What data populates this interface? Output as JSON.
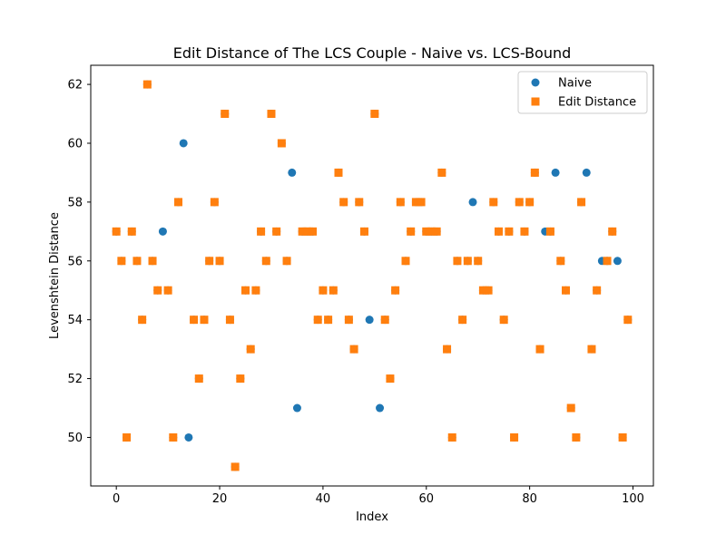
{
  "chart_data": {
    "type": "scatter",
    "title": "Edit Distance of The LCS Couple - Naive vs. LCS-Bound",
    "xlabel": "Index",
    "ylabel": "Levenshtein Distance",
    "xlim": [
      -4.95,
      103.95
    ],
    "ylim": [
      48.35,
      62.65
    ],
    "xticks": [
      0,
      20,
      40,
      60,
      80,
      100
    ],
    "yticks": [
      50,
      52,
      54,
      56,
      58,
      60,
      62
    ],
    "grid": false,
    "legend_position": "top-right",
    "series": [
      {
        "name": "Naive",
        "marker": "circle",
        "color": "#1f77b4",
        "x": [
          0,
          1,
          2,
          3,
          4,
          5,
          6,
          7,
          8,
          9,
          10,
          11,
          12,
          13,
          14,
          15,
          16,
          17,
          18,
          19,
          20,
          21,
          22,
          23,
          24,
          25,
          26,
          27,
          28,
          29,
          30,
          31,
          32,
          33,
          34,
          35,
          36,
          37,
          38,
          39,
          40,
          41,
          42,
          43,
          44,
          45,
          46,
          47,
          48,
          49,
          50,
          51,
          52,
          53,
          54,
          55,
          56,
          57,
          58,
          59,
          60,
          61,
          62,
          63,
          64,
          65,
          66,
          67,
          68,
          69,
          70,
          71,
          72,
          73,
          74,
          75,
          76,
          77,
          78,
          79,
          80,
          81,
          82,
          83,
          84,
          85,
          86,
          87,
          88,
          89,
          90,
          91,
          92,
          93,
          94,
          95,
          96,
          97,
          98,
          99
        ],
        "y": [
          57,
          56,
          50,
          57,
          56,
          54,
          62,
          56,
          55,
          57,
          55,
          50,
          58,
          60,
          50,
          54,
          52,
          54,
          56,
          58,
          56,
          61,
          54,
          49,
          52,
          55,
          53,
          55,
          57,
          56,
          61,
          57,
          60,
          56,
          59,
          51,
          57,
          57,
          57,
          54,
          55,
          54,
          55,
          59,
          58,
          54,
          53,
          58,
          57,
          54,
          61,
          51,
          54,
          52,
          55,
          58,
          56,
          57,
          58,
          58,
          57,
          57,
          57,
          59,
          53,
          50,
          56,
          54,
          56,
          58,
          56,
          55,
          55,
          58,
          57,
          54,
          57,
          50,
          58,
          57,
          58,
          59,
          53,
          57,
          57,
          59,
          56,
          55,
          51,
          50,
          58,
          59,
          53,
          55,
          56,
          56,
          57,
          56,
          50,
          54
        ]
      },
      {
        "name": "Edit Distance",
        "marker": "square",
        "color": "#ff7f0e",
        "x": [
          0,
          1,
          2,
          3,
          4,
          5,
          6,
          7,
          8,
          10,
          11,
          12,
          15,
          16,
          17,
          18,
          19,
          20,
          21,
          22,
          23,
          24,
          25,
          26,
          27,
          28,
          29,
          30,
          31,
          32,
          33,
          36,
          37,
          38,
          39,
          40,
          41,
          42,
          43,
          44,
          45,
          46,
          47,
          48,
          50,
          52,
          53,
          54,
          55,
          56,
          57,
          58,
          59,
          60,
          61,
          62,
          63,
          64,
          65,
          66,
          67,
          68,
          70,
          71,
          72,
          73,
          74,
          75,
          76,
          77,
          78,
          79,
          80,
          81,
          82,
          84,
          86,
          87,
          88,
          89,
          90,
          92,
          93,
          95,
          96,
          98,
          99
        ],
        "y": [
          57,
          56,
          50,
          57,
          56,
          54,
          62,
          56,
          55,
          55,
          50,
          58,
          54,
          52,
          54,
          56,
          58,
          56,
          61,
          54,
          49,
          52,
          55,
          53,
          55,
          57,
          56,
          61,
          57,
          60,
          56,
          57,
          57,
          57,
          54,
          55,
          54,
          55,
          59,
          58,
          54,
          53,
          58,
          57,
          61,
          54,
          52,
          55,
          58,
          56,
          57,
          58,
          58,
          57,
          57,
          57,
          59,
          53,
          50,
          56,
          54,
          56,
          56,
          55,
          55,
          58,
          57,
          54,
          57,
          50,
          58,
          57,
          58,
          59,
          53,
          57,
          56,
          55,
          51,
          50,
          58,
          53,
          55,
          56,
          57,
          50,
          54
        ]
      }
    ]
  }
}
